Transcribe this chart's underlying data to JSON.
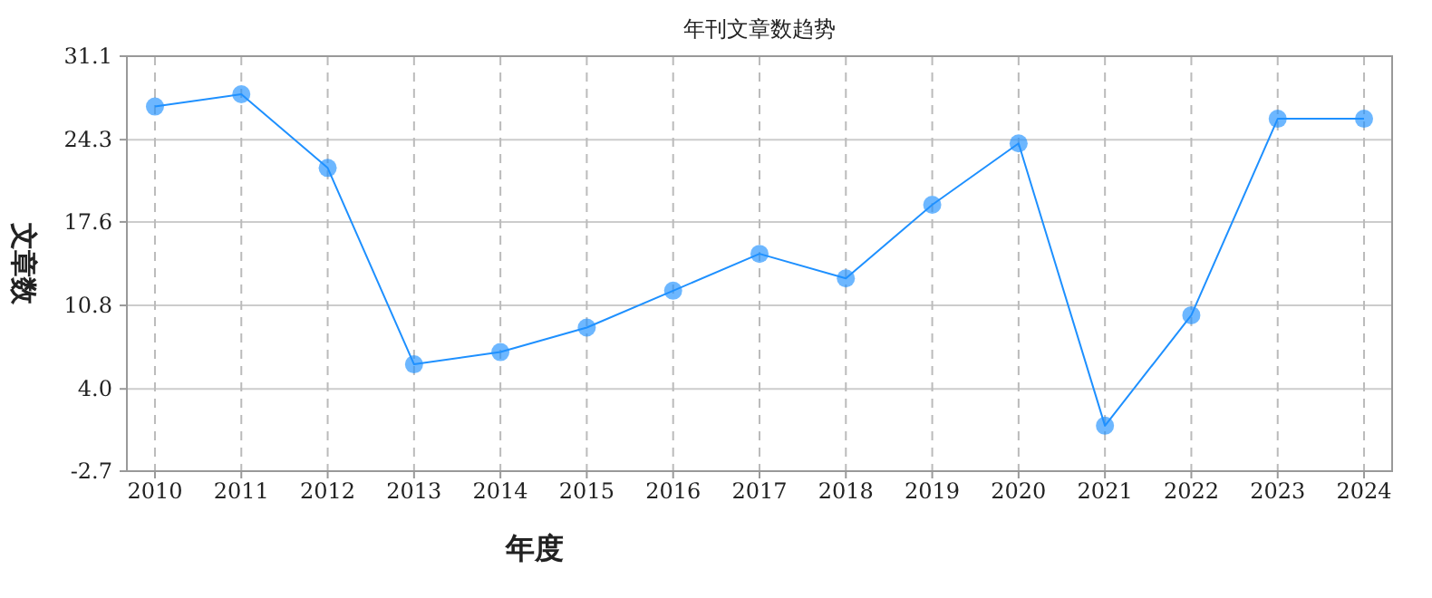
{
  "chart_data": {
    "type": "line",
    "title": "年刊文章数趋势",
    "xlabel": "年度",
    "ylabel": "文章数",
    "categories": [
      "2010",
      "2011",
      "2012",
      "2013",
      "2014",
      "2015",
      "2016",
      "2017",
      "2018",
      "2019",
      "2020",
      "2021",
      "2022",
      "2023",
      "2024"
    ],
    "series": [
      {
        "color": "#1e90ff",
        "values": [
          27,
          28,
          22,
          6,
          7,
          9,
          12,
          15,
          13,
          19,
          24,
          1,
          10,
          26,
          26
        ]
      }
    ],
    "ylim": [
      -2.7,
      31.1
    ],
    "yticks": [
      -2.7,
      {
        "value": 4,
        "label": "4.0"
      },
      10.8,
      17.6,
      24.3,
      31.1
    ],
    "grid": true,
    "marker": "circle",
    "line_style": "solid"
  }
}
